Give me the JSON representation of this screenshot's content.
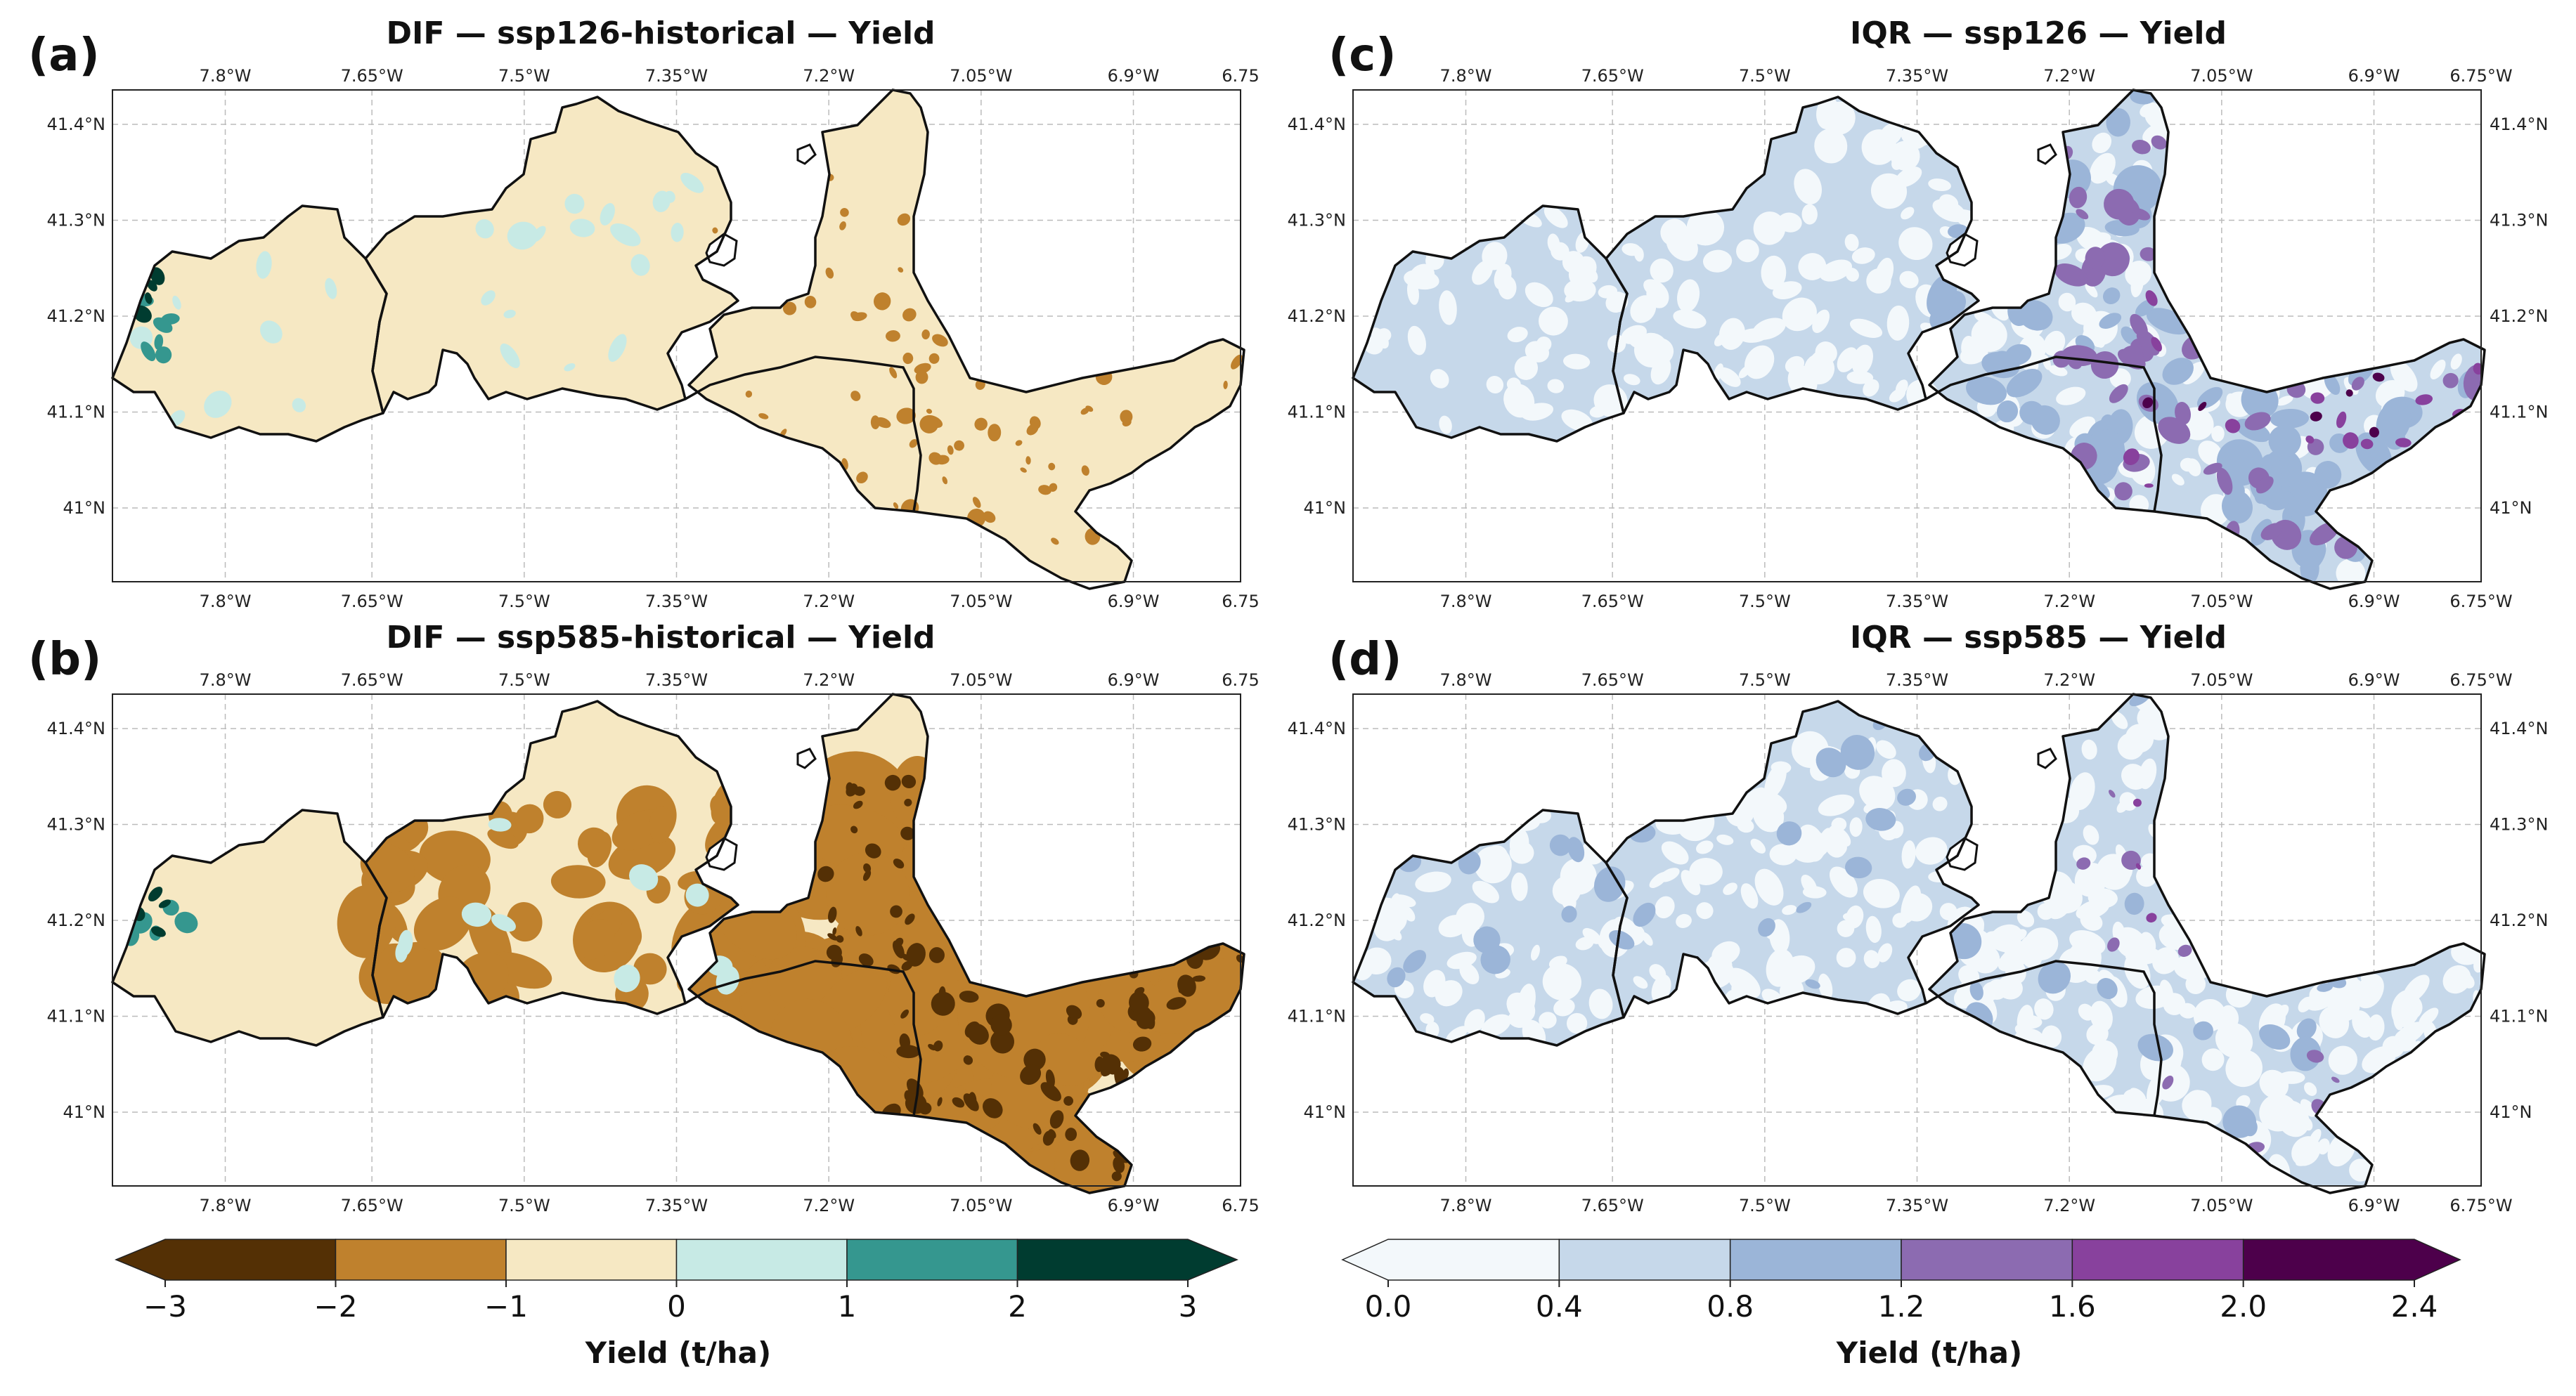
{
  "lon_ticks": [
    "7.8°W",
    "7.65°W",
    "7.5°W",
    "7.35°W",
    "7.2°W",
    "7.05°W",
    "6.9°W",
    "6.75"
  ],
  "lon_ticks_right": [
    "7.8°W",
    "7.65°W",
    "7.5°W",
    "7.35°W",
    "7.2°W",
    "7.05°W",
    "6.9°W",
    "6.75°W"
  ],
  "lat_ticks": [
    "41.4°N",
    "41.3°N",
    "41.2°N",
    "41.1°N",
    "41°N"
  ],
  "panels": [
    {
      "tag": "(a)",
      "title": "DIF — ssp126-historical — Yield"
    },
    {
      "tag": "(b)",
      "title": "DIF — ssp585-historical — Yield"
    },
    {
      "tag": "(c)",
      "title": "IQR — ssp126 — Yield"
    },
    {
      "tag": "(d)",
      "title": "IQR — ssp585 — Yield"
    }
  ],
  "colorbar_dif": {
    "label": "Yield (t/ha)",
    "ticks": [
      "−3",
      "−2",
      "−1",
      "0",
      "1",
      "2",
      "3"
    ],
    "colors": [
      "#543005",
      "#bf812d",
      "#f6e8c3",
      "#c7eae5",
      "#35978f",
      "#003c30"
    ]
  },
  "colorbar_iqr": {
    "label": "Yield (t/ha)",
    "ticks": [
      "0.0",
      "0.4",
      "0.8",
      "1.2",
      "1.6",
      "2.0",
      "2.4"
    ],
    "colors": [
      "#f3f8fb",
      "#c6d8ea",
      "#9bb5d8",
      "#8c6bb1",
      "#88419d",
      "#4d004b"
    ]
  },
  "colors": {
    "dif_base": "#f6e8c3",
    "dif_neg2": "#bf812d",
    "dif_neg3": "#543005",
    "dif_pos1": "#c7eae5",
    "dif_pos2": "#35978f",
    "dif_pos3": "#003c30",
    "iqr_base": "#c6d8ea",
    "iqr_low": "#f3f8fb",
    "iqr_mid": "#9bb5d8",
    "iqr_hi": "#8c6bb1",
    "iqr_top": "#88419d",
    "iqr_max": "#4d004b"
  }
}
